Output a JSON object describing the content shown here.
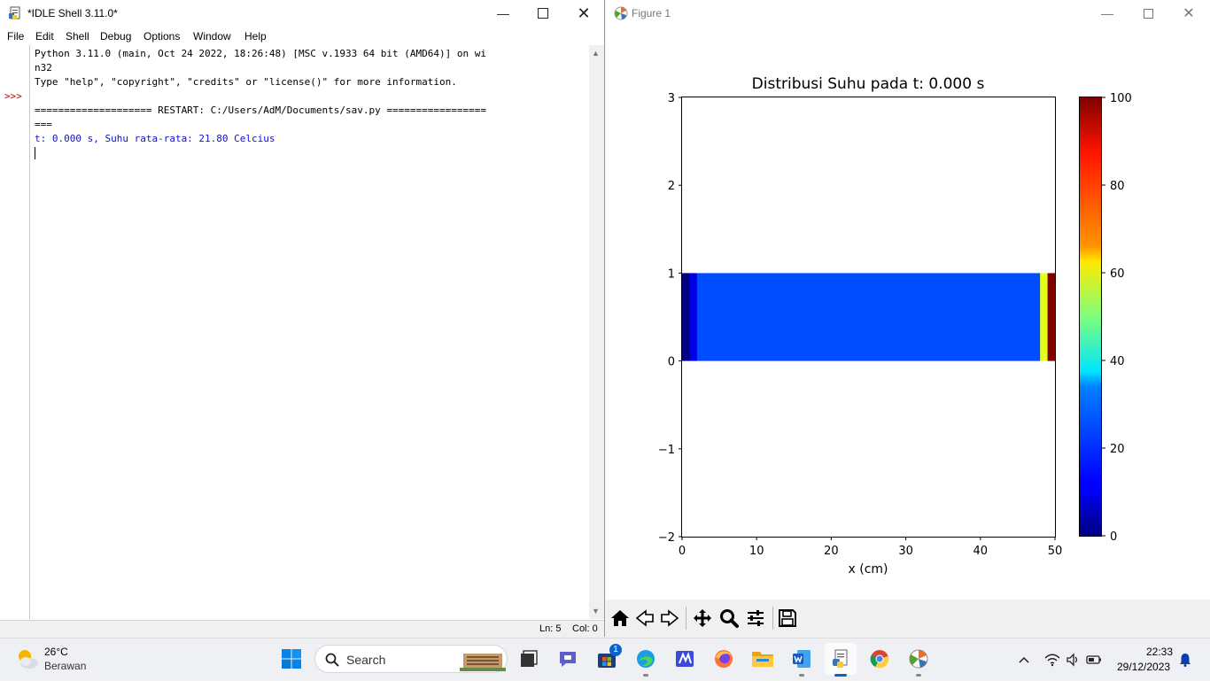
{
  "idle": {
    "title": "*IDLE Shell 3.11.0*",
    "menu": [
      "File",
      "Edit",
      "Shell",
      "Debug",
      "Options",
      "Window",
      "Help"
    ],
    "prompt": ">>>",
    "lines": [
      "Python 3.11.0 (main, Oct 24 2022, 18:26:48) [MSC v.1933 64 bit (AMD64)] on wi",
      "n32",
      "Type \"help\", \"copyright\", \"credits\" or \"license()\" for more information.",
      "",
      "==================== RESTART: C:/Users/AdM/Documents/sav.py =================",
      "==="
    ],
    "output_line": "t: 0.000 s, Suhu rata-rata: 21.80 Celcius",
    "status_ln": "Ln: 5",
    "status_col": "Col: 0"
  },
  "figure": {
    "title": "Figure 1",
    "toolbar": [
      "home-icon",
      "back-icon",
      "forward-icon",
      "pan-icon",
      "zoom-icon",
      "configure-subplots-icon",
      "save-icon"
    ]
  },
  "chart_data": {
    "type": "heatmap",
    "title": "Distribusi Suhu pada t: 0.000 s",
    "xlabel": "x (cm)",
    "ylabel": "",
    "xlim": [
      0,
      50
    ],
    "ylim": [
      -2,
      3
    ],
    "x_ticks": [
      "0",
      "10",
      "20",
      "30",
      "40",
      "50"
    ],
    "y_ticks": [
      "3",
      "2",
      "1",
      "0",
      "−1",
      "−2"
    ],
    "extent": [
      0,
      50,
      0,
      1
    ],
    "colormap": "jet",
    "cells": [
      {
        "x0": 0,
        "x1": 1,
        "value": 0
      },
      {
        "x0": 1,
        "x1": 2,
        "value": 10
      },
      {
        "x0": 2,
        "x1": 48,
        "value": 20
      },
      {
        "x0": 48,
        "x1": 49,
        "value": 60
      },
      {
        "x0": 49,
        "x1": 50,
        "value": 100
      }
    ],
    "colorbar": {
      "min": 0,
      "max": 100,
      "ticks": [
        "100",
        "80",
        "60",
        "40",
        "20",
        "0"
      ]
    }
  },
  "taskbar": {
    "weather_temp": "26°C",
    "weather_desc": "Berawan",
    "search_label": "Search",
    "store_badge": "1",
    "time": "22:33",
    "date": "29/12/2023"
  }
}
